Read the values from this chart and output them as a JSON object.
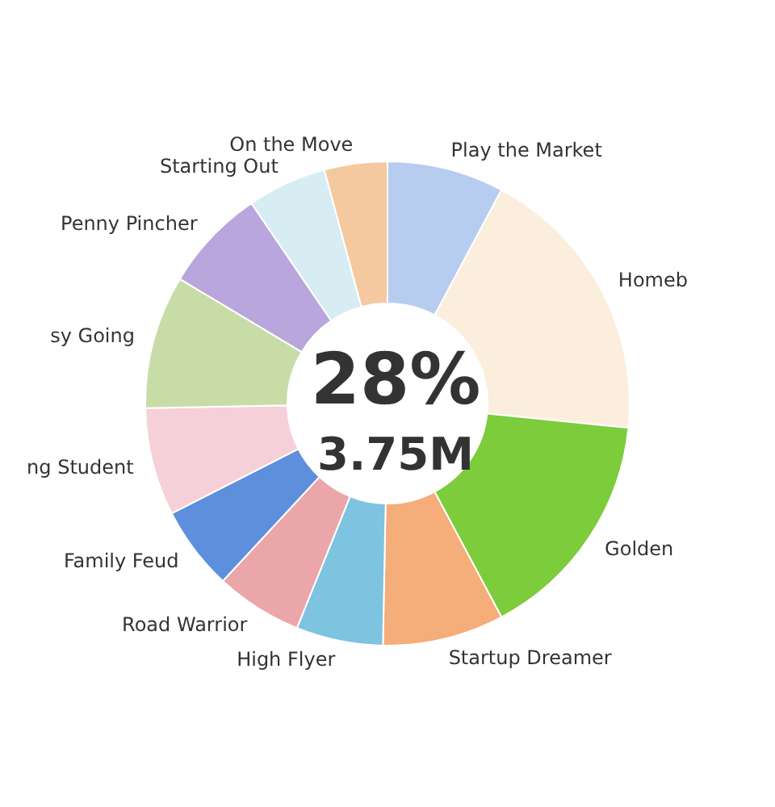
{
  "chart_data": {
    "type": "donut",
    "categories": [
      "Play the Market",
      "Homeb",
      "Golden",
      "Startup Dreamer",
      "High Flyer",
      "Road Warrior",
      "Family Feud",
      "ng Student",
      "sy Going",
      "Penny Pincher",
      "Starting Out",
      "On the Move"
    ],
    "values": [
      7.8,
      18.8,
      15.6,
      8.1,
      5.8,
      5.8,
      5.6,
      7.2,
      8.9,
      6.9,
      5.3,
      4.2
    ],
    "colors": [
      "#b7cdf0",
      "#fbeedd",
      "#7ccc3c",
      "#f5ad7a",
      "#7ec3e0",
      "#eba6aa",
      "#5e8fdc",
      "#f6d0d8",
      "#c8dca8",
      "#b8a6dc",
      "#d8ecf4",
      "#f5c9a0"
    ],
    "annotations": [
      "28%",
      "3.75M"
    ],
    "legend": false
  }
}
